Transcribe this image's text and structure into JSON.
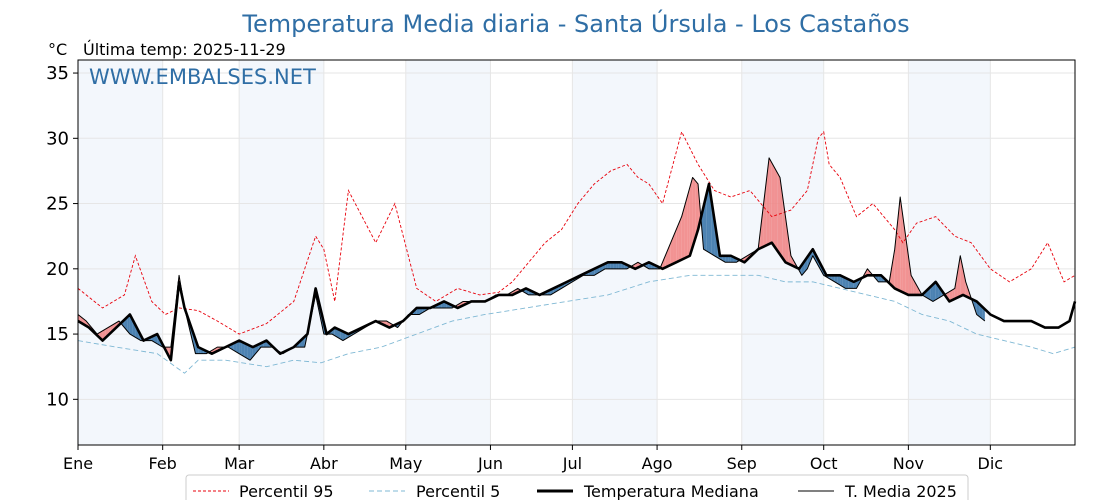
{
  "chart_data": {
    "type": "line",
    "title": "Temperatura Media diaria - Santa Úrsula - Los Castaños",
    "unit": "°C",
    "last_temp_label": "Última temp: 2025-11-29",
    "watermark": "WWW.EMBALSES.NET",
    "ylim": [
      6.5,
      36
    ],
    "yticks": [
      10,
      15,
      20,
      25,
      30,
      35
    ],
    "grid": true,
    "legend_position": "bottom-center",
    "x_axis": {
      "type": "day-of-year",
      "range": [
        1,
        366
      ],
      "month_labels": [
        "Ene",
        "Feb",
        "Mar",
        "Abr",
        "May",
        "Jun",
        "Jul",
        "Ago",
        "Sep",
        "Oct",
        "Nov",
        "Dic"
      ],
      "month_starts": [
        1,
        32,
        60,
        91,
        121,
        152,
        182,
        213,
        244,
        274,
        305,
        335
      ]
    },
    "fill_colors": {
      "above_median": "#f08080",
      "below_median": "#2e6da4"
    },
    "series": [
      {
        "name": "Percentil 95",
        "color": "#e8000b",
        "style": "dashed",
        "x": [
          1,
          10,
          18,
          22,
          28,
          33,
          38,
          45,
          52,
          60,
          70,
          80,
          88,
          91,
          95,
          100,
          110,
          117,
          125,
          132,
          140,
          148,
          155,
          160,
          166,
          172,
          178,
          184,
          190,
          196,
          202,
          206,
          210,
          215,
          222,
          228,
          234,
          240,
          247,
          255,
          262,
          268,
          272,
          274,
          276,
          280,
          286,
          292,
          300,
          303,
          308,
          315,
          322,
          328,
          335,
          342,
          350,
          356,
          362,
          366
        ],
        "values": [
          18.5,
          17,
          18,
          21,
          17.5,
          16.5,
          17,
          16.8,
          16,
          15,
          15.8,
          17.5,
          22.5,
          21.5,
          17.5,
          26,
          22,
          25,
          18.5,
          17.5,
          18.5,
          18,
          18.2,
          19,
          20.5,
          22,
          23,
          25,
          26.5,
          27.5,
          28,
          27,
          26.5,
          25,
          30.5,
          28,
          26,
          25.5,
          26,
          24,
          24.5,
          26,
          30,
          30.5,
          28,
          27,
          24,
          25,
          23,
          22,
          23.5,
          24,
          22.5,
          22,
          20,
          19,
          20,
          22,
          19,
          19.5
        ]
      },
      {
        "name": "Percentil 5",
        "color": "#7fb8d4",
        "style": "dashed",
        "x": [
          1,
          15,
          30,
          40,
          45,
          55,
          70,
          80,
          90,
          100,
          112,
          125,
          138,
          150,
          165,
          180,
          195,
          210,
          225,
          240,
          250,
          260,
          270,
          280,
          290,
          300,
          310,
          320,
          330,
          340,
          350,
          358,
          366
        ],
        "values": [
          14.5,
          14,
          13.5,
          12,
          13,
          13,
          12.5,
          13,
          12.8,
          13.5,
          14,
          15,
          16,
          16.5,
          17,
          17.5,
          18,
          19,
          19.5,
          19.5,
          19.5,
          19,
          19,
          18.5,
          18,
          17.5,
          16.5,
          16,
          15,
          14.5,
          14,
          13.5,
          14
        ]
      },
      {
        "name": "Temperatura Mediana",
        "color": "#000000",
        "style": "solid-thick",
        "x": [
          1,
          5,
          10,
          15,
          20,
          25,
          30,
          35,
          38,
          40,
          45,
          50,
          55,
          60,
          65,
          70,
          75,
          80,
          85,
          88,
          92,
          95,
          100,
          105,
          110,
          115,
          120,
          125,
          130,
          135,
          140,
          145,
          150,
          155,
          160,
          165,
          170,
          175,
          180,
          185,
          190,
          195,
          200,
          205,
          210,
          215,
          220,
          225,
          228,
          232,
          236,
          240,
          245,
          250,
          255,
          260,
          265,
          270,
          275,
          280,
          285,
          290,
          295,
          300,
          305,
          310,
          315,
          320,
          325,
          330,
          335,
          340,
          345,
          350,
          355,
          360,
          364,
          366
        ],
        "values": [
          16,
          15.5,
          14.5,
          15.5,
          16.5,
          14.5,
          15,
          13,
          19,
          17,
          14,
          13.5,
          14,
          14.5,
          14,
          14.5,
          13.5,
          14,
          15,
          18.5,
          15,
          15.5,
          15,
          15.5,
          16,
          15.5,
          16,
          17,
          17,
          17.5,
          17,
          17.5,
          17.5,
          18,
          18,
          18.5,
          18,
          18.5,
          19,
          19.5,
          20,
          20.5,
          20.5,
          20,
          20.5,
          20,
          20.5,
          21,
          23,
          26.5,
          21,
          21,
          20.5,
          21.5,
          22,
          20.5,
          20,
          21.5,
          19.5,
          19.5,
          19,
          19.5,
          19.5,
          18.5,
          18,
          18,
          19,
          17.5,
          18,
          17.5,
          16.5,
          16,
          16,
          16,
          15.5,
          15.5,
          16,
          17.5
        ]
      },
      {
        "name": "T. Media 2025",
        "color": "#000000",
        "style": "solid-thin",
        "x": [
          1,
          4,
          8,
          12,
          16,
          20,
          24,
          28,
          32,
          35,
          38,
          40,
          44,
          48,
          52,
          56,
          60,
          64,
          68,
          72,
          76,
          80,
          84,
          88,
          91,
          94,
          98,
          102,
          106,
          110,
          114,
          118,
          122,
          126,
          130,
          134,
          138,
          142,
          146,
          150,
          154,
          158,
          162,
          166,
          170,
          174,
          178,
          182,
          186,
          190,
          194,
          198,
          202,
          206,
          210,
          214,
          218,
          222,
          226,
          228,
          230,
          234,
          238,
          242,
          246,
          250,
          254,
          258,
          262,
          266,
          268,
          270,
          274,
          278,
          282,
          286,
          290,
          294,
          298,
          300,
          302,
          306,
          310,
          314,
          318,
          322,
          324,
          326,
          330,
          333
        ],
        "values": [
          16.5,
          16,
          15,
          15.5,
          16,
          15,
          14.5,
          14.5,
          14,
          14,
          19.5,
          17,
          13.5,
          13.5,
          14,
          14,
          13.5,
          13,
          14,
          14,
          13.5,
          14,
          14,
          18,
          15,
          15,
          14.5,
          15,
          15.5,
          16,
          16,
          15.5,
          16.5,
          16.5,
          17,
          17,
          17,
          17.5,
          17.5,
          17.5,
          18,
          18,
          18.5,
          18,
          18,
          18,
          18.5,
          19,
          19.5,
          19.5,
          20,
          20,
          20,
          20.5,
          20,
          20,
          22,
          24,
          27,
          26.5,
          21.5,
          21,
          20.5,
          20.5,
          21,
          21.5,
          28.5,
          27,
          21,
          19.5,
          20,
          21,
          19.5,
          19,
          18.5,
          18.5,
          20,
          19,
          19,
          21.5,
          25.5,
          19.5,
          18,
          17.5,
          18,
          18.5,
          21,
          19,
          16.5,
          16
        ]
      }
    ]
  }
}
